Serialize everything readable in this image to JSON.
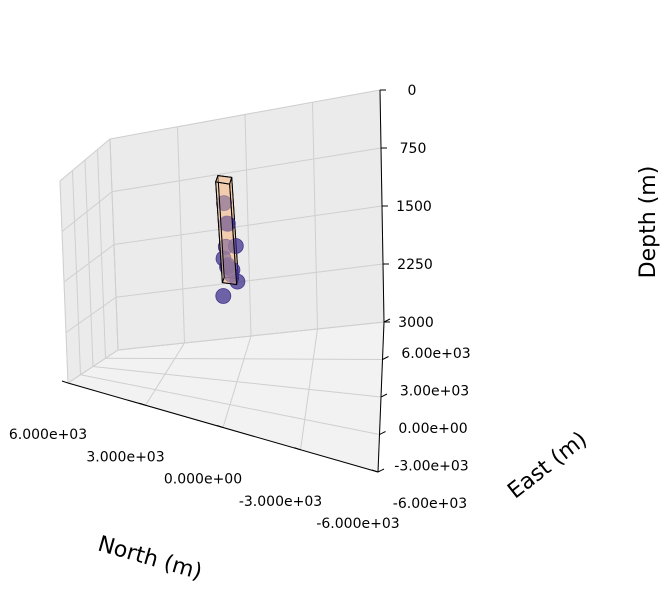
{
  "chart_data": {
    "type": "scatter3d",
    "xlabel": "North (m)",
    "ylabel": "East (m)",
    "zlabel": "Depth (m)",
    "xlim": [
      6000,
      -6000
    ],
    "ylim": [
      -6000,
      6000
    ],
    "zlim": [
      3000,
      0
    ],
    "z_inverted": true,
    "grid": true,
    "x_ticks": [
      {
        "value": 6000,
        "label": "6.000e+03"
      },
      {
        "value": 3000,
        "label": "3.000e+03"
      },
      {
        "value": 0,
        "label": "0.000e+00"
      },
      {
        "value": -3000,
        "label": "-3.000e+03"
      },
      {
        "value": -6000,
        "label": "-6.000e+03"
      }
    ],
    "y_ticks": [
      {
        "value": -6000,
        "label": "-6.00e+03"
      },
      {
        "value": -3000,
        "label": "-3.00e+03"
      },
      {
        "value": 0,
        "label": "0.00e+00"
      },
      {
        "value": 3000,
        "label": "3.00e+03"
      },
      {
        "value": 6000,
        "label": "6.00e+03"
      }
    ],
    "z_ticks": [
      {
        "value": 0,
        "label": "0"
      },
      {
        "value": 750,
        "label": "750"
      },
      {
        "value": 1500,
        "label": "1500"
      },
      {
        "value": 2250,
        "label": "2250"
      },
      {
        "value": 3000,
        "label": "3000"
      }
    ],
    "box": {
      "x": [
        -300,
        300
      ],
      "y": [
        -300,
        300
      ],
      "z": [
        0,
        1500
      ],
      "face_color": "#f2c9a8",
      "edge_color": "#000000"
    },
    "points": [
      {
        "x": 0,
        "y": 0,
        "z": 650
      },
      {
        "x": 0,
        "y": 300,
        "z": 700
      },
      {
        "x": 0,
        "y": -300,
        "z": 300
      },
      {
        "x": -300,
        "y": 200,
        "z": 1000
      },
      {
        "x": 100,
        "y": 0,
        "z": 1000
      },
      {
        "x": 200,
        "y": -200,
        "z": 1150
      },
      {
        "x": 100,
        "y": 0,
        "z": 1300
      },
      {
        "x": 100,
        "y": 200,
        "z": 1300
      },
      {
        "x": -100,
        "y": 100,
        "z": 1350
      },
      {
        "x": 0,
        "y": 300,
        "z": 1450
      },
      {
        "x": -300,
        "y": 0,
        "z": 1500
      },
      {
        "x": 300,
        "y": -300,
        "z": 1700
      }
    ],
    "point_color": "#3b2c8a",
    "colors": {
      "pane_floor": "#f2f2f2",
      "pane_wall": "#ebebeb",
      "grid": "#cfcfcf"
    }
  }
}
